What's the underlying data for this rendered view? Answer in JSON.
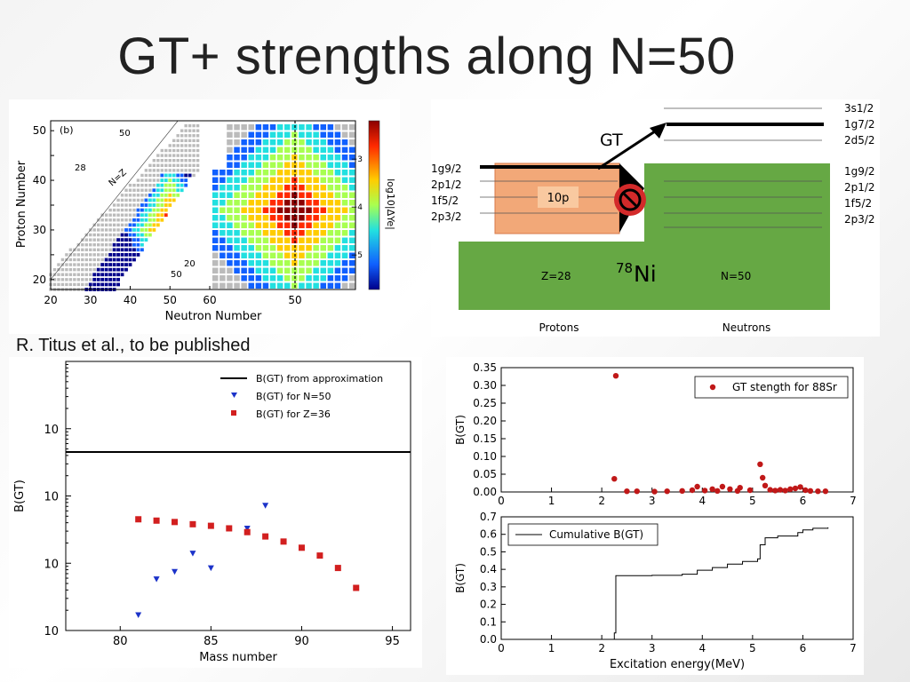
{
  "slide": {
    "title": "GT+ strengths along N=50",
    "caption": "R. Titus et al., to be published"
  },
  "nuclear_chart": {
    "panel_label": "(b)",
    "xlabel": "Neutron Number",
    "ylabel": "Proton Number",
    "x_ticks": [
      "20",
      "30",
      "40",
      "50",
      "60"
    ],
    "x_ticks_zoom": [
      "50"
    ],
    "y_ticks": [
      "20",
      "25",
      "30",
      "35",
      "40",
      "45",
      "50"
    ],
    "annotations": [
      "50",
      "28",
      "N=Z",
      "20",
      "50"
    ],
    "colorbar_label": "log10|ΔYe|",
    "colorbar_ticks": [
      "−3",
      "−4",
      "−5"
    ]
  },
  "level_scheme": {
    "gt_label": "GT",
    "proton_levels": [
      "1g9/2",
      "2p1/2",
      "1f5/2",
      "2p3/2"
    ],
    "neutron_levels": [
      "1g9/2",
      "2p1/2",
      "1f5/2",
      "2p3/2"
    ],
    "upper_levels": [
      "3s1/2",
      "1g7/2",
      "2d5/2"
    ],
    "box_label": "10p",
    "z_label": "Z=28",
    "n_label": "N=50",
    "nucleus_mass": "78",
    "nucleus_symbol": "Ni",
    "protons_label": "Protons",
    "neutrons_label": "Neutrons",
    "colors": {
      "proton_box": "#f2a878",
      "core": "#66a844",
      "block": "#d32a2a"
    }
  },
  "chart_data": [
    {
      "type": "scatter",
      "title": "",
      "xlabel": "Mass number",
      "ylabel": "B(GT)",
      "yscale": "log",
      "xlim": [
        77,
        96
      ],
      "ylim": [
        0.01,
        100
      ],
      "x_ticks": [
        "80",
        "85",
        "90",
        "95"
      ],
      "y_ticks": [
        "10^-2",
        "10^-1",
        "10^0",
        "10^1"
      ],
      "legend_position": "top-right",
      "series": [
        {
          "name": "B(GT) from approximation",
          "type": "line",
          "color": "#000000",
          "points": [
            [
              77,
              4.5
            ],
            [
              96,
              4.5
            ]
          ]
        },
        {
          "name": "B(GT) for N=50",
          "type": "scatter",
          "marker": "triangle-down",
          "color": "#1c33c9",
          "points": [
            [
              81,
              0.017
            ],
            [
              82,
              0.058
            ],
            [
              83,
              0.075
            ],
            [
              84,
              0.14
            ],
            [
              85,
              0.085
            ],
            [
              87,
              0.33
            ],
            [
              88,
              0.72
            ]
          ]
        },
        {
          "name": "B(GT) for Z=36",
          "type": "scatter",
          "marker": "square",
          "color": "#d21f1f",
          "points": [
            [
              81,
              0.45
            ],
            [
              82,
              0.43
            ],
            [
              83,
              0.41
            ],
            [
              84,
              0.38
            ],
            [
              85,
              0.36
            ],
            [
              86,
              0.33
            ],
            [
              87,
              0.29
            ],
            [
              88,
              0.25
            ],
            [
              89,
              0.21
            ],
            [
              90,
              0.17
            ],
            [
              91,
              0.13
            ],
            [
              92,
              0.085
            ],
            [
              93,
              0.043
            ]
          ]
        }
      ]
    },
    {
      "type": "scatter",
      "title": "",
      "xlabel": "",
      "ylabel": "B(GT)",
      "xlim": [
        0,
        7
      ],
      "ylim": [
        0,
        0.35
      ],
      "x_ticks": [
        "0",
        "1",
        "2",
        "3",
        "4",
        "5",
        "6",
        "7"
      ],
      "y_ticks": [
        "0.00",
        "0.05",
        "0.10",
        "0.15",
        "0.20",
        "0.25",
        "0.30",
        "0.35"
      ],
      "legend_position": "top-right",
      "legend": "GT  stength for 88Sr",
      "color": "#c01818",
      "points": [
        [
          2.25,
          0.037
        ],
        [
          2.28,
          0.327
        ],
        [
          2.5,
          0.002
        ],
        [
          2.7,
          0.002
        ],
        [
          3.05,
          0.001
        ],
        [
          3.3,
          0.002
        ],
        [
          3.6,
          0.003
        ],
        [
          3.8,
          0.005
        ],
        [
          3.9,
          0.015
        ],
        [
          4.05,
          0.004
        ],
        [
          4.2,
          0.008
        ],
        [
          4.3,
          0.003
        ],
        [
          4.4,
          0.015
        ],
        [
          4.55,
          0.008
        ],
        [
          4.7,
          0.003
        ],
        [
          4.75,
          0.012
        ],
        [
          4.95,
          0.005
        ],
        [
          5.15,
          0.078
        ],
        [
          5.2,
          0.04
        ],
        [
          5.25,
          0.018
        ],
        [
          5.35,
          0.006
        ],
        [
          5.45,
          0.004
        ],
        [
          5.55,
          0.006
        ],
        [
          5.65,
          0.004
        ],
        [
          5.75,
          0.008
        ],
        [
          5.85,
          0.01
        ],
        [
          5.95,
          0.014
        ],
        [
          6.05,
          0.005
        ],
        [
          6.15,
          0.003
        ],
        [
          6.3,
          0.002
        ],
        [
          6.45,
          0.002
        ]
      ]
    },
    {
      "type": "line",
      "title": "",
      "xlabel": "Excitation energy(MeV)",
      "ylabel": "B(GT)",
      "xlim": [
        0,
        7
      ],
      "ylim": [
        0,
        0.7
      ],
      "x_ticks": [
        "0",
        "1",
        "2",
        "3",
        "4",
        "5",
        "6",
        "7"
      ],
      "y_ticks": [
        "0.0",
        "0.1",
        "0.2",
        "0.3",
        "0.4",
        "0.5",
        "0.6",
        "0.7"
      ],
      "legend_position": "top-left",
      "series": [
        {
          "name": "Cumulative B(GT)",
          "color": "#000000",
          "points": [
            [
              2.24,
              0.0
            ],
            [
              2.25,
              0.037
            ],
            [
              2.28,
              0.364
            ],
            [
              3.0,
              0.366
            ],
            [
              3.6,
              0.372
            ],
            [
              3.9,
              0.395
            ],
            [
              4.2,
              0.41
            ],
            [
              4.5,
              0.43
            ],
            [
              4.8,
              0.445
            ],
            [
              5.1,
              0.46
            ],
            [
              5.15,
              0.54
            ],
            [
              5.25,
              0.58
            ],
            [
              5.5,
              0.59
            ],
            [
              5.9,
              0.61
            ],
            [
              6.0,
              0.625
            ],
            [
              6.2,
              0.635
            ],
            [
              6.5,
              0.64
            ]
          ]
        }
      ]
    }
  ]
}
